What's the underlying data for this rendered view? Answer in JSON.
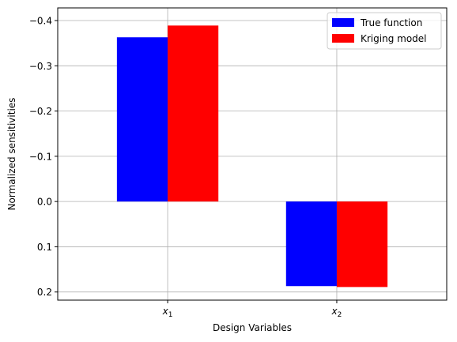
{
  "chart_data": {
    "type": "bar",
    "categories_tex": [
      {
        "base": "x",
        "sub": "1"
      },
      {
        "base": "x",
        "sub": "2"
      }
    ],
    "series": [
      {
        "name": "True function",
        "values": [
          -0.363,
          0.187
        ],
        "color": "#0000ff"
      },
      {
        "name": "Kriging model",
        "values": [
          -0.389,
          0.189
        ],
        "color": "#ff0000"
      }
    ],
    "xlabel": "Design Variables",
    "ylabel": "Normalized sensitivities",
    "ylim": [
      0.2,
      -0.4
    ],
    "y_inverted": true,
    "yticks": [
      -0.4,
      -0.3,
      -0.2,
      -0.1,
      0.0,
      0.1,
      0.2
    ],
    "ytick_labels": [
      "−0.4",
      "−0.3",
      "−0.2",
      "−0.1",
      "0.0",
      "0.1",
      "0.2"
    ],
    "grid": true,
    "legend": "top-right"
  }
}
